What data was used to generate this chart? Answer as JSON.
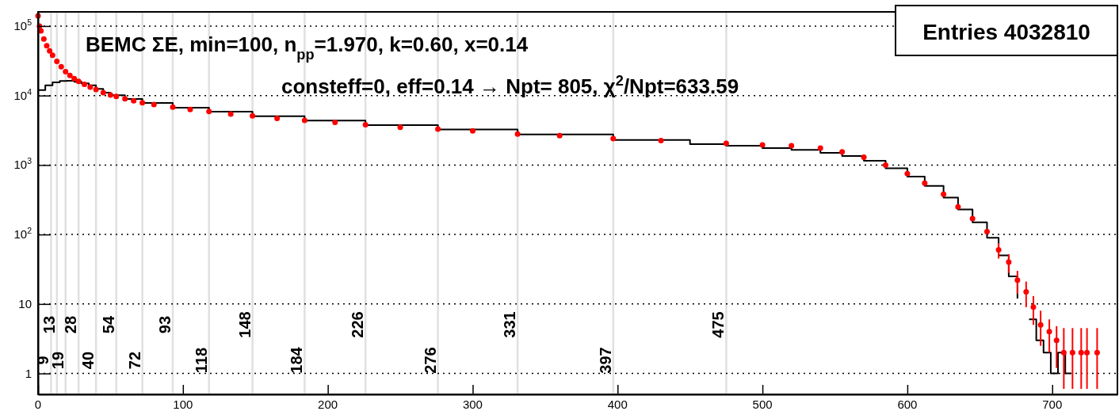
{
  "chart_data": {
    "type": "scatter",
    "log": "y",
    "grid": "y",
    "xlim": [
      0,
      745
    ],
    "ylim": [
      0.5,
      160000
    ],
    "xticks": [
      0,
      100,
      200,
      300,
      400,
      500,
      600,
      700
    ],
    "yticks": [
      1,
      10,
      {
        "value": 100,
        "label": "10$^{2}$"
      },
      {
        "value": 1000,
        "label": "10$^{3}$"
      },
      {
        "value": 10000,
        "label": "10$^{4}$"
      },
      {
        "value": 100000,
        "label": "10$^{5}$"
      }
    ],
    "series": [
      {
        "type": "step",
        "color": "#000000",
        "x": [
          0,
          5,
          10,
          15,
          20,
          25,
          30,
          35,
          40,
          45,
          50,
          60,
          72,
          93,
          118,
          148,
          184,
          226,
          276,
          331,
          397,
          450,
          475,
          500,
          520,
          540,
          555,
          570,
          585,
          600,
          612,
          625,
          635,
          645,
          655,
          663,
          670,
          676,
          679,
          684,
          689,
          694,
          699,
          704,
          709,
          713
        ],
        "values": [
          12000,
          14000,
          15500,
          16200,
          16300,
          15800,
          15000,
          14000,
          12500,
          11000,
          10100,
          8900,
          7800,
          6700,
          5850,
          5050,
          4350,
          3750,
          3250,
          2750,
          2300,
          2000,
          1900,
          1750,
          1650,
          1500,
          1350,
          1150,
          900,
          680,
          500,
          340,
          230,
          150,
          90,
          50,
          25,
          12,
          null,
          6,
          3,
          2,
          1,
          2,
          1,
          1
        ]
      },
      {
        "marker": "circle",
        "color": "#ff0000",
        "x": [
          0,
          1,
          2,
          4,
          6,
          8,
          10,
          13,
          16,
          19,
          22,
          25,
          28,
          32,
          36,
          40,
          45,
          50,
          54,
          60,
          66,
          72,
          80,
          93,
          105,
          118,
          133,
          148,
          165,
          184,
          205,
          226,
          250,
          276,
          300,
          331,
          360,
          397,
          430,
          475,
          500,
          520,
          540,
          555,
          570,
          585,
          600,
          612,
          625,
          635,
          645,
          655,
          663,
          670,
          676,
          682,
          687,
          692,
          698,
          703,
          708,
          714,
          720,
          724,
          731
        ],
        "values": [
          140000,
          100000,
          85000,
          65000,
          52000,
          44000,
          38000,
          31000,
          26000,
          22000,
          19500,
          17500,
          16000,
          14500,
          13200,
          12200,
          11000,
          10200,
          9700,
          9000,
          8400,
          7900,
          7400,
          6800,
          6300,
          5900,
          5400,
          5100,
          4700,
          4400,
          4100,
          3800,
          3500,
          3300,
          3100,
          2800,
          2650,
          2400,
          2250,
          2050,
          1950,
          1900,
          1750,
          1550,
          1300,
          1000,
          750,
          550,
          380,
          250,
          170,
          110,
          60,
          40,
          22,
          15,
          9,
          5,
          4,
          3,
          2,
          2,
          2,
          2,
          2
        ],
        "errors": [
          null,
          null,
          null,
          null,
          null,
          null,
          null,
          null,
          null,
          null,
          null,
          null,
          null,
          null,
          null,
          null,
          null,
          null,
          null,
          null,
          null,
          null,
          null,
          null,
          null,
          null,
          null,
          null,
          null,
          null,
          null,
          null,
          null,
          null,
          null,
          null,
          null,
          null,
          null,
          null,
          null,
          null,
          null,
          null,
          null,
          null,
          null,
          null,
          null,
          null,
          null,
          null,
          [
            45,
            75
          ],
          [
            28,
            52
          ],
          [
            14,
            30
          ],
          [
            9,
            21
          ],
          [
            5,
            13
          ],
          [
            2.5,
            8
          ],
          [
            2,
            6
          ],
          [
            1.2,
            4.8
          ],
          [
            0.6,
            4.5
          ],
          [
            0.6,
            4.5
          ],
          [
            0.6,
            4.5
          ],
          [
            0.6,
            4.5
          ],
          [
            0.6,
            4.5
          ]
        ]
      }
    ],
    "ref_lines": [
      {
        "axis": "x",
        "value": 9,
        "label": "9",
        "color": "#e0e0e0"
      },
      {
        "axis": "x",
        "value": 13,
        "label": "13",
        "color": "#e0e0e0"
      },
      {
        "axis": "x",
        "value": 19,
        "label": "19",
        "color": "#e0e0e0"
      },
      {
        "axis": "x",
        "value": 28,
        "label": "28",
        "color": "#e0e0e0"
      },
      {
        "axis": "x",
        "value": 40,
        "label": "40",
        "color": "#e0e0e0"
      },
      {
        "axis": "x",
        "value": 54,
        "label": "54",
        "color": "#e0e0e0"
      },
      {
        "axis": "x",
        "value": 72,
        "label": "72",
        "color": "#e0e0e0"
      },
      {
        "axis": "x",
        "value": 93,
        "label": "93",
        "color": "#e0e0e0"
      },
      {
        "axis": "x",
        "value": 118,
        "label": "118",
        "color": "#e0e0e0"
      },
      {
        "axis": "x",
        "value": 148,
        "label": "148",
        "color": "#e0e0e0"
      },
      {
        "axis": "x",
        "value": 184,
        "label": "184",
        "color": "#e0e0e0"
      },
      {
        "axis": "x",
        "value": 226,
        "label": "226",
        "color": "#e0e0e0"
      },
      {
        "axis": "x",
        "value": 276,
        "label": "276",
        "color": "#e0e0e0"
      },
      {
        "axis": "x",
        "value": 331,
        "label": "331",
        "color": "#e0e0e0"
      },
      {
        "axis": "x",
        "value": 397,
        "label": "397",
        "color": "#e0e0e0"
      },
      {
        "axis": "x",
        "value": 475,
        "label": "475",
        "color": "#e0e0e0"
      }
    ],
    "annotations": [
      "BEMC  ΣE, min=100, n$_{pp}$=1.970, k=0.60, x=0.14",
      "consteff=0, eff=0.14  → Npt= 805, χ$^{2}$/Npt=633.59",
      "Entries 4032810"
    ]
  }
}
